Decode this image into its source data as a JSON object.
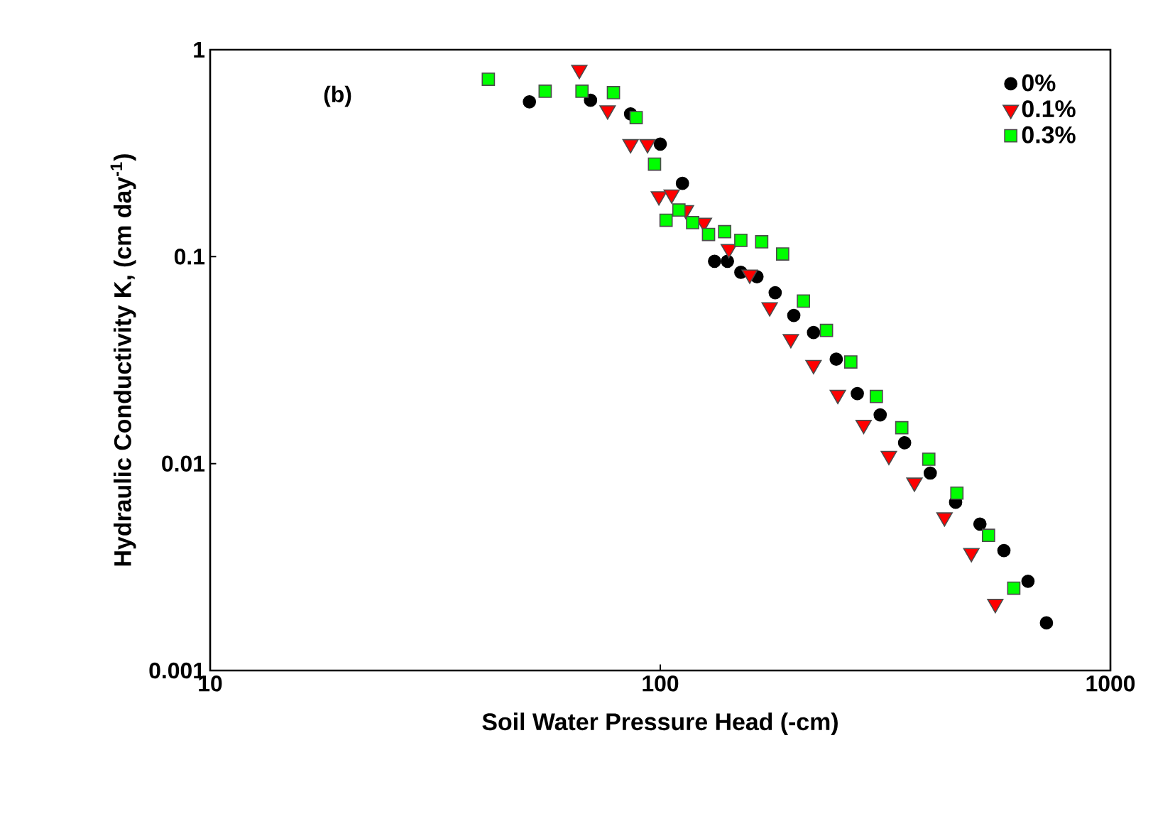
{
  "chart_data": {
    "type": "scatter",
    "xlabel": "Soil Water Pressure Head (-cm)",
    "ylabel": "Hydraulic Conductivity K, (cm day$^{-1}$)",
    "annotations": [
      "(b)"
    ],
    "log": "xy",
    "grid": false,
    "legend": "top right",
    "xlim": [
      10,
      1000
    ],
    "ylim": [
      0.001,
      1
    ],
    "xticks": [
      10,
      100,
      1000
    ],
    "yticks": [
      0.001,
      0.01,
      0.1,
      1
    ],
    "series": [
      {
        "name": "0%",
        "color": "#000000",
        "marker": "circle",
        "x": [
          51.2,
          70,
          85.9,
          100,
          112,
          132,
          141,
          151,
          164,
          180,
          198,
          219,
          246,
          274,
          308,
          349,
          398,
          453,
          513,
          580,
          656,
          721
        ],
        "values": [
          0.56,
          0.57,
          0.49,
          0.35,
          0.226,
          0.095,
          0.095,
          0.084,
          0.08,
          0.067,
          0.052,
          0.043,
          0.032,
          0.0218,
          0.0172,
          0.0126,
          0.009,
          0.0065,
          0.0051,
          0.0038,
          0.0027,
          0.0017
        ]
      },
      {
        "name": "0.1%",
        "color": "#ff0000",
        "marker": "triangle",
        "x": [
          66.1,
          76.4,
          85.9,
          93.7,
          99.3,
          106,
          114,
          125,
          142,
          158,
          175,
          195,
          219,
          248,
          283,
          322,
          367,
          428,
          491,
          555
        ],
        "values": [
          0.8,
          0.51,
          0.35,
          0.35,
          0.196,
          0.2,
          0.168,
          0.146,
          0.109,
          0.082,
          0.057,
          0.04,
          0.03,
          0.0215,
          0.0154,
          0.0109,
          0.0081,
          0.0055,
          0.0037,
          0.0021
        ]
      },
      {
        "name": "0.3%",
        "color": "#00ff00",
        "marker": "square",
        "x": [
          41.5,
          55.5,
          67,
          78.7,
          88.4,
          97.1,
          103,
          110,
          118,
          128,
          139,
          151,
          168,
          187,
          208,
          234,
          265,
          302,
          344,
          395,
          456,
          536,
          610
        ],
        "values": [
          0.72,
          0.63,
          0.63,
          0.62,
          0.47,
          0.28,
          0.15,
          0.168,
          0.146,
          0.128,
          0.132,
          0.12,
          0.118,
          0.103,
          0.061,
          0.044,
          0.031,
          0.0211,
          0.0149,
          0.0105,
          0.0072,
          0.0045,
          0.0025
        ]
      }
    ]
  }
}
